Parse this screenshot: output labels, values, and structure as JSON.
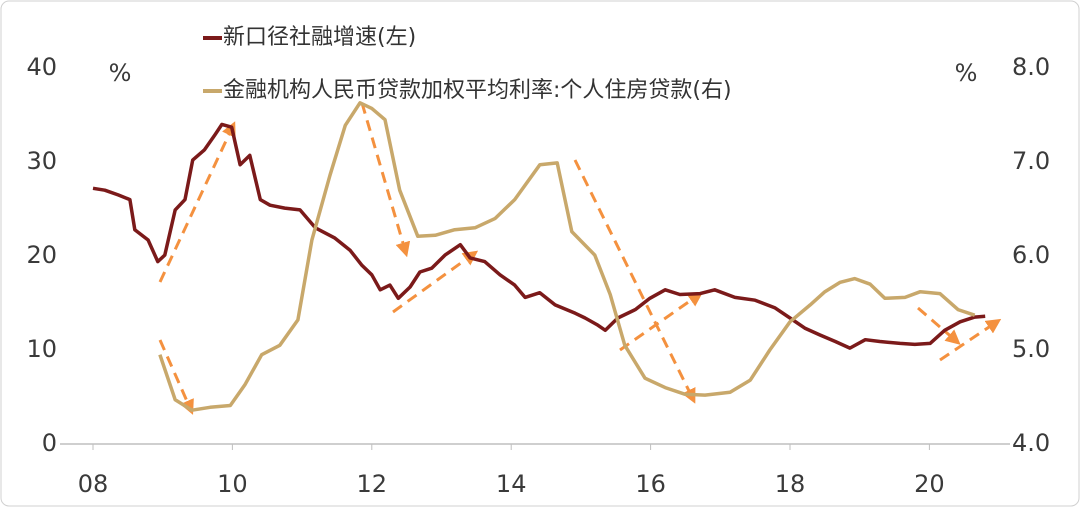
{
  "chart_data": {
    "type": "line",
    "y_unit": "%",
    "y2_unit": "%",
    "xlim": [
      2008,
      2021
    ],
    "xticks": [
      {
        "value": 2008,
        "label": "08"
      },
      {
        "value": 2010,
        "label": "10"
      },
      {
        "value": 2012,
        "label": "12"
      },
      {
        "value": 2014,
        "label": "14"
      },
      {
        "value": 2016,
        "label": "16"
      },
      {
        "value": 2018,
        "label": "18"
      },
      {
        "value": 2020,
        "label": "20"
      }
    ],
    "ylim": [
      0,
      40
    ],
    "yticks": [
      0,
      10,
      20,
      30,
      40
    ],
    "y2lim": [
      4,
      8
    ],
    "y2ticks": [
      {
        "value": 4,
        "label": "4.0"
      },
      {
        "value": 5,
        "label": "5.0"
      },
      {
        "value": 6,
        "label": "6.0"
      },
      {
        "value": 7,
        "label": "7.0"
      },
      {
        "value": 8,
        "label": "8.0"
      }
    ],
    "series": [
      {
        "name": "新口径社融增速(左)",
        "color": "#7b1a1a",
        "axis": "y",
        "x": [
          2008.0,
          2008.17,
          2008.36,
          2008.53,
          2008.6,
          2008.79,
          2008.93,
          2009.03,
          2009.18,
          2009.32,
          2009.43,
          2009.6,
          2009.75,
          2009.85,
          2009.99,
          2010.11,
          2010.25,
          2010.4,
          2010.54,
          2010.75,
          2010.97,
          2011.19,
          2011.47,
          2011.69,
          2011.86,
          2012.0,
          2012.12,
          2012.26,
          2012.38,
          2012.55,
          2012.69,
          2012.86,
          2013.05,
          2013.27,
          2013.41,
          2013.62,
          2013.84,
          2014.05,
          2014.2,
          2014.41,
          2014.63,
          2014.92,
          2015.06,
          2015.23,
          2015.35,
          2015.53,
          2015.78,
          2015.99,
          2016.21,
          2016.42,
          2016.71,
          2016.92,
          2017.21,
          2017.5,
          2017.78,
          2018.0,
          2018.22,
          2018.43,
          2018.65,
          2018.86,
          2019.08,
          2019.29,
          2019.58,
          2019.79,
          2020.01,
          2020.22,
          2020.44,
          2020.65,
          2020.8
        ],
        "values": [
          27.2,
          27,
          26.5,
          26,
          22.8,
          21.7,
          19.4,
          20.1,
          24.9,
          26,
          30.2,
          31.3,
          32.9,
          34,
          33.7,
          29.7,
          30.7,
          26,
          25.4,
          25.1,
          24.9,
          23,
          21.9,
          20.6,
          19,
          18,
          16.4,
          16.9,
          15.5,
          16.7,
          18.3,
          18.7,
          20.1,
          21.2,
          19.8,
          19.4,
          18,
          16.9,
          15.6,
          16.1,
          14.8,
          13.9,
          13.4,
          12.7,
          12.1,
          13.4,
          14.3,
          15.5,
          16.4,
          15.9,
          16,
          16.4,
          15.6,
          15.3,
          14.5,
          13.4,
          12.3,
          11.6,
          10.9,
          10.2,
          11.1,
          10.9,
          10.7,
          10.6,
          10.7,
          12.1,
          13,
          13.5,
          13.6
        ]
      },
      {
        "name": "金融机构人民币贷款加权平均利率:个人住房贷款(右)",
        "color": "#c8a86b",
        "axis": "y2",
        "x": [
          2008.96,
          2009.18,
          2009.42,
          2009.68,
          2009.97,
          2010.18,
          2010.42,
          2010.68,
          2010.94,
          2011.14,
          2011.4,
          2011.62,
          2011.83,
          2012.0,
          2012.19,
          2012.4,
          2012.66,
          2012.91,
          2013.19,
          2013.48,
          2013.77,
          2014.05,
          2014.41,
          2014.66,
          2014.87,
          2015.2,
          2015.42,
          2015.63,
          2015.92,
          2016.21,
          2016.49,
          2016.78,
          2017.14,
          2017.43,
          2017.71,
          2018.0,
          2018.29,
          2018.5,
          2018.72,
          2018.93,
          2019.15,
          2019.36,
          2019.65,
          2019.87,
          2020.15,
          2020.41,
          2020.65
        ],
        "values": [
          4.95,
          4.47,
          4.36,
          4.39,
          4.41,
          4.63,
          4.95,
          5.05,
          5.32,
          6.17,
          6.86,
          7.39,
          7.63,
          7.57,
          7.45,
          6.7,
          6.21,
          6.22,
          6.28,
          6.3,
          6.4,
          6.6,
          6.97,
          6.99,
          6.26,
          6.01,
          5.59,
          5.05,
          4.7,
          4.6,
          4.53,
          4.52,
          4.55,
          4.68,
          5,
          5.3,
          5.48,
          5.62,
          5.72,
          5.76,
          5.7,
          5.55,
          5.56,
          5.62,
          5.6,
          5.43,
          5.37
        ]
      }
    ]
  }
}
